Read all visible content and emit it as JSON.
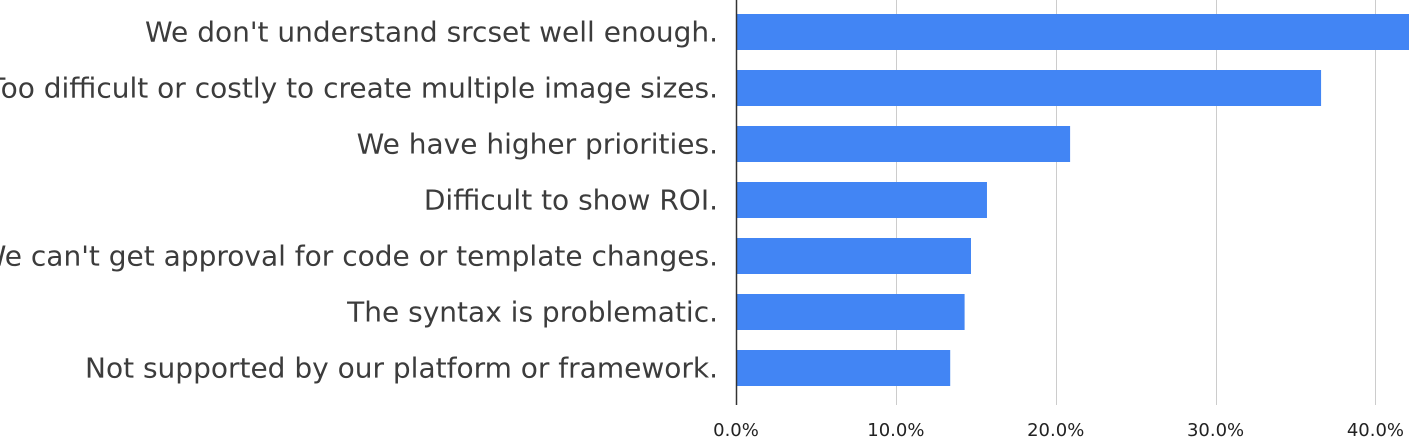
{
  "chart_data": {
    "type": "bar",
    "orientation": "horizontal",
    "title": "",
    "xlabel": "",
    "ylabel": "",
    "categories": [
      "We don't understand srcset well enough.",
      "Too difficult or costly to create multiple image sizes.",
      "We have higher priorities.",
      "Difficult to show ROI.",
      "We can't get approval for code or template changes.",
      "The syntax is problematic.",
      "Not supported by our platform or framework."
    ],
    "values": [
      42.1,
      36.6,
      20.9,
      15.7,
      14.7,
      14.3,
      13.4
    ],
    "xlim": [
      0,
      42.1
    ],
    "x_ticks": [
      0,
      10,
      20,
      30,
      40
    ],
    "x_tick_labels": [
      "0.0%",
      "10.0%",
      "20.0%",
      "30.0%",
      "40.0%"
    ],
    "grid": true,
    "legend": "none",
    "colors": {
      "bar": "#4285f4",
      "grid": "#cccccc",
      "axis": "#333333"
    }
  }
}
